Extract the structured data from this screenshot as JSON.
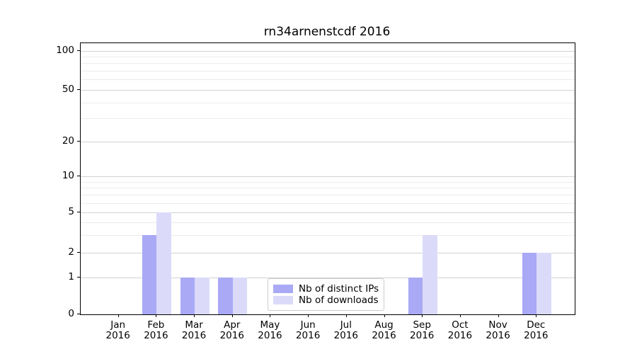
{
  "title": "rn34arnenstcdf 2016",
  "chart_data": {
    "type": "bar",
    "title": "rn34arnenstcdf 2016",
    "categories": [
      "Jan",
      "Feb",
      "Mar",
      "Apr",
      "May",
      "Jun",
      "Jul",
      "Aug",
      "Sep",
      "Oct",
      "Nov",
      "Dec"
    ],
    "year": "2016",
    "series": [
      {
        "name": "Nb of distinct IPs",
        "color": "#a9a9f5",
        "values": [
          0,
          3,
          1,
          1,
          0,
          0,
          0,
          0,
          1,
          0,
          0,
          2
        ]
      },
      {
        "name": "Nb of downloads",
        "color": "#dbdbf9",
        "values": [
          0,
          5,
          1,
          1,
          0,
          0,
          0,
          0,
          3,
          0,
          0,
          2
        ]
      }
    ],
    "xlabel": "",
    "ylabel": "",
    "yscale": "symlog",
    "ylim": [
      0,
      115
    ],
    "ytick_values": [
      0,
      1,
      2,
      5,
      10,
      20,
      50,
      100
    ],
    "ytick_labels": [
      "0",
      "1",
      "2",
      "5",
      "10",
      "20",
      "50",
      "100"
    ],
    "yminor_tick_values": [
      3,
      4,
      6,
      7,
      8,
      9,
      30,
      40,
      60,
      70,
      80,
      90
    ],
    "grid": "horizontal, major and minor",
    "legend_position": "lower center",
    "colors": {
      "background": "#ffffff",
      "spine": "#000000",
      "major_grid": "#d2d2d2",
      "minor_grid": "#ececec",
      "legend_border": "#cccccc"
    }
  }
}
